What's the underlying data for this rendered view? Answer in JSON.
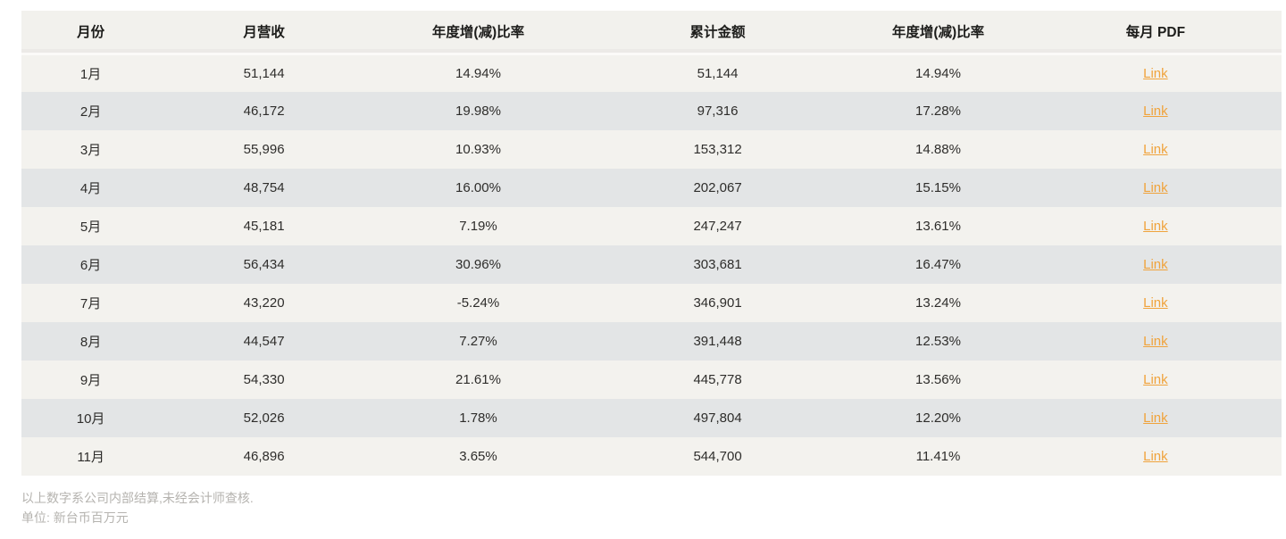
{
  "table": {
    "headers": [
      "月份",
      "月营收",
      "年度增(减)比率",
      "累计金额",
      "年度增(减)比率",
      "每月 PDF"
    ],
    "rows": [
      {
        "month": "1月",
        "revenue": "51,144",
        "yoy_rate": "14.94%",
        "cumulative": "51,144",
        "cumulative_yoy_rate": "14.94%",
        "pdf_label": "Link"
      },
      {
        "month": "2月",
        "revenue": "46,172",
        "yoy_rate": "19.98%",
        "cumulative": "97,316",
        "cumulative_yoy_rate": "17.28%",
        "pdf_label": "Link"
      },
      {
        "month": "3月",
        "revenue": "55,996",
        "yoy_rate": "10.93%",
        "cumulative": "153,312",
        "cumulative_yoy_rate": "14.88%",
        "pdf_label": "Link"
      },
      {
        "month": "4月",
        "revenue": "48,754",
        "yoy_rate": "16.00%",
        "cumulative": "202,067",
        "cumulative_yoy_rate": "15.15%",
        "pdf_label": "Link"
      },
      {
        "month": "5月",
        "revenue": "45,181",
        "yoy_rate": "7.19%",
        "cumulative": "247,247",
        "cumulative_yoy_rate": "13.61%",
        "pdf_label": "Link"
      },
      {
        "month": "6月",
        "revenue": "56,434",
        "yoy_rate": "30.96%",
        "cumulative": "303,681",
        "cumulative_yoy_rate": "16.47%",
        "pdf_label": "Link"
      },
      {
        "month": "7月",
        "revenue": "43,220",
        "yoy_rate": "-5.24%",
        "cumulative": "346,901",
        "cumulative_yoy_rate": "13.24%",
        "pdf_label": "Link"
      },
      {
        "month": "8月",
        "revenue": "44,547",
        "yoy_rate": "7.27%",
        "cumulative": "391,448",
        "cumulative_yoy_rate": "12.53%",
        "pdf_label": "Link"
      },
      {
        "month": "9月",
        "revenue": "54,330",
        "yoy_rate": "21.61%",
        "cumulative": "445,778",
        "cumulative_yoy_rate": "13.56%",
        "pdf_label": "Link"
      },
      {
        "month": "10月",
        "revenue": "52,026",
        "yoy_rate": "1.78%",
        "cumulative": "497,804",
        "cumulative_yoy_rate": "12.20%",
        "pdf_label": "Link"
      },
      {
        "month": "11月",
        "revenue": "46,896",
        "yoy_rate": "3.65%",
        "cumulative": "544,700",
        "cumulative_yoy_rate": "11.41%",
        "pdf_label": "Link"
      }
    ]
  },
  "footer": {
    "note1": "以上数字系公司内部结算,未经会计师查核.",
    "note2": "单位: 新台币百万元"
  },
  "colors": {
    "row_odd_bg": "#f3f2ee",
    "row_even_bg": "#e3e5e6",
    "header_bg": "#f2f1ed",
    "link": "#f0a33c",
    "footer_text": "#b5b3af"
  }
}
